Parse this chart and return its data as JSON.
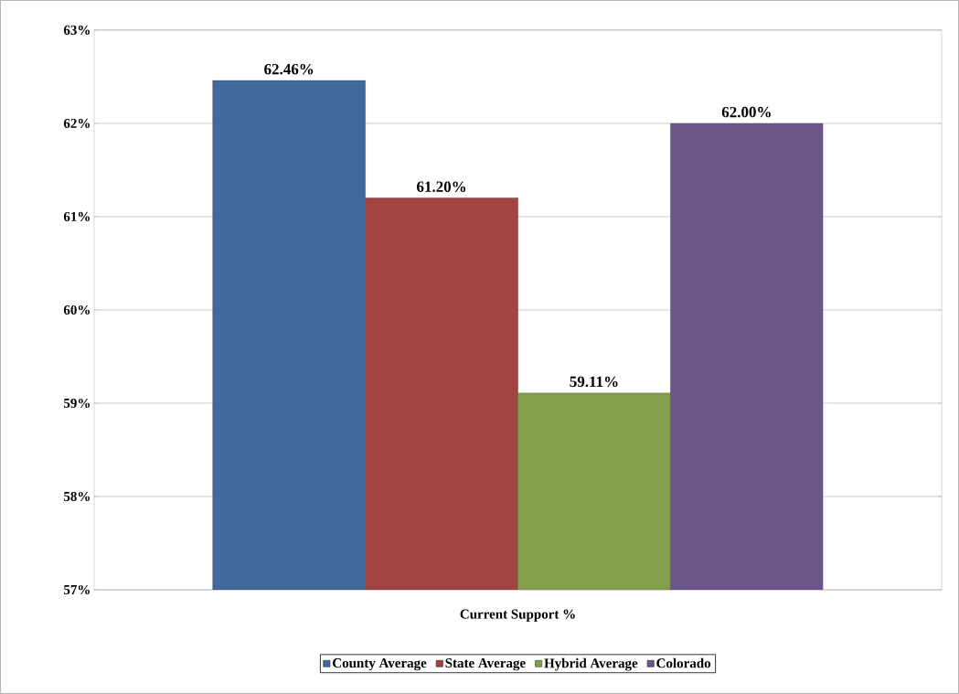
{
  "chart_data": {
    "type": "bar",
    "categories": [
      "Current Support %"
    ],
    "series": [
      {
        "name": "County Average",
        "color": "#43699c",
        "values": [
          62.46
        ],
        "value_labels": [
          "62.46%"
        ]
      },
      {
        "name": "State Average",
        "color": "#a24542",
        "values": [
          61.2
        ],
        "value_labels": [
          "61.20%"
        ]
      },
      {
        "name": "Hybrid Average",
        "color": "#849f4b",
        "values": [
          59.11
        ],
        "value_labels": [
          "59.11%"
        ]
      },
      {
        "name": "Colorado",
        "color": "#6c5589",
        "values": [
          62.0
        ],
        "value_labels": [
          "62.00%"
        ]
      }
    ],
    "ylim": [
      57,
      63
    ],
    "yticks": [
      {
        "value": 57,
        "label": "57%"
      },
      {
        "value": 58,
        "label": "58%"
      },
      {
        "value": 59,
        "label": "59%"
      },
      {
        "value": 60,
        "label": "60%"
      },
      {
        "value": 61,
        "label": "61%"
      },
      {
        "value": 62,
        "label": "62%"
      },
      {
        "value": 63,
        "label": "63%"
      }
    ],
    "grid": "y",
    "legend": "bottom"
  }
}
